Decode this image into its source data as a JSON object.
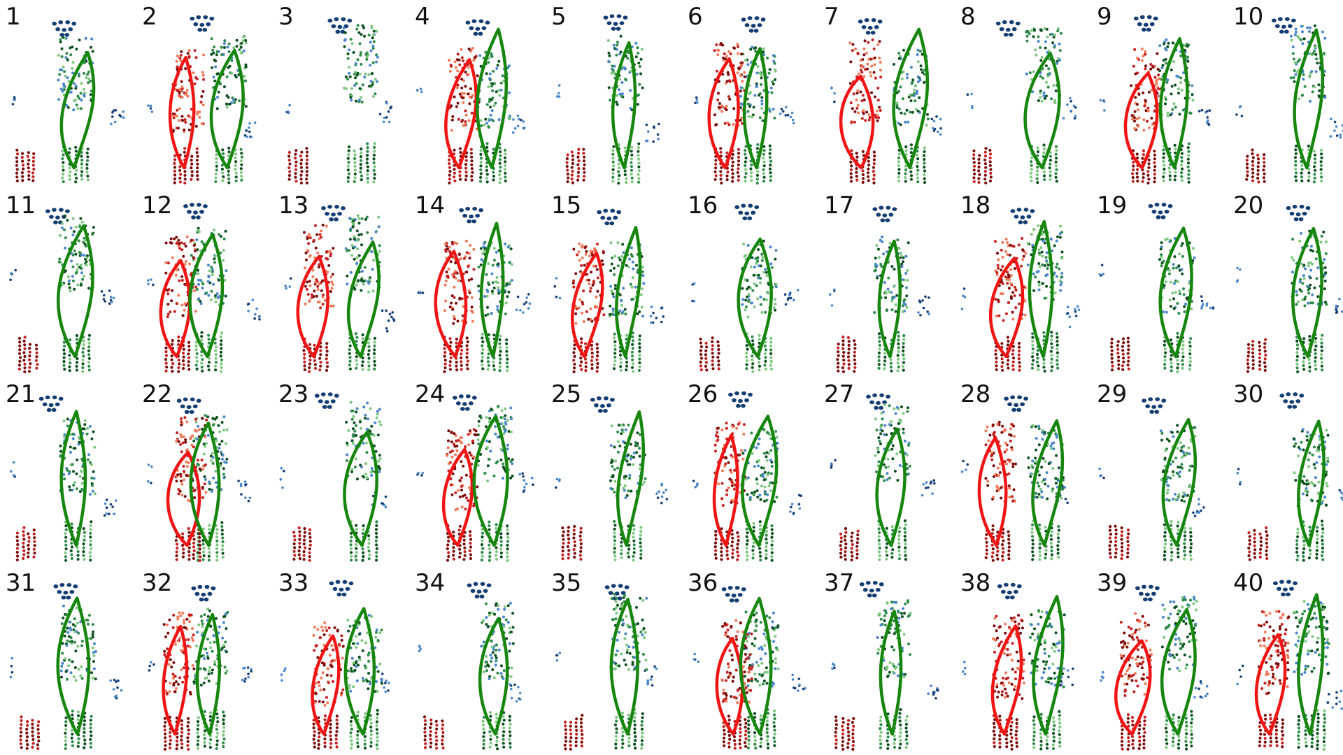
{
  "figure": {
    "panels": [
      {
        "label": "1",
        "trails": [
          "green"
        ]
      },
      {
        "label": "2",
        "trails": [
          "red",
          "green"
        ]
      },
      {
        "label": "3",
        "trails": []
      },
      {
        "label": "4",
        "trails": [
          "red",
          "green"
        ]
      },
      {
        "label": "5",
        "trails": [
          "green"
        ]
      },
      {
        "label": "6",
        "trails": [
          "red",
          "green"
        ]
      },
      {
        "label": "7",
        "trails": [
          "red",
          "green"
        ]
      },
      {
        "label": "8",
        "trails": [
          "green"
        ]
      },
      {
        "label": "9",
        "trails": [
          "red",
          "green"
        ]
      },
      {
        "label": "10",
        "trails": [
          "green"
        ]
      },
      {
        "label": "11",
        "trails": [
          "green"
        ]
      },
      {
        "label": "12",
        "trails": [
          "red",
          "green"
        ]
      },
      {
        "label": "13",
        "trails": [
          "red",
          "green"
        ]
      },
      {
        "label": "14",
        "trails": [
          "red",
          "green"
        ]
      },
      {
        "label": "15",
        "trails": [
          "red",
          "green"
        ]
      },
      {
        "label": "16",
        "trails": [
          "green"
        ]
      },
      {
        "label": "17",
        "trails": [
          "green"
        ]
      },
      {
        "label": "18",
        "trails": [
          "red",
          "green"
        ]
      },
      {
        "label": "19",
        "trails": [
          "green"
        ]
      },
      {
        "label": "20",
        "trails": [
          "green"
        ]
      },
      {
        "label": "21",
        "trails": [
          "green"
        ]
      },
      {
        "label": "22",
        "trails": [
          "red",
          "green"
        ]
      },
      {
        "label": "23",
        "trails": [
          "green"
        ]
      },
      {
        "label": "24",
        "trails": [
          "red",
          "green"
        ]
      },
      {
        "label": "25",
        "trails": [
          "green"
        ]
      },
      {
        "label": "26",
        "trails": [
          "red",
          "green"
        ]
      },
      {
        "label": "27",
        "trails": [
          "green"
        ]
      },
      {
        "label": "28",
        "trails": [
          "red",
          "green"
        ]
      },
      {
        "label": "29",
        "trails": [
          "green"
        ]
      },
      {
        "label": "30",
        "trails": [
          "green"
        ]
      },
      {
        "label": "31",
        "trails": [
          "green"
        ]
      },
      {
        "label": "32",
        "trails": [
          "red",
          "green"
        ]
      },
      {
        "label": "33",
        "trails": [
          "red",
          "green"
        ]
      },
      {
        "label": "34",
        "trails": [
          "green"
        ]
      },
      {
        "label": "35",
        "trails": [
          "green"
        ]
      },
      {
        "label": "36",
        "trails": [
          "red",
          "green"
        ]
      },
      {
        "label": "37",
        "trails": [
          "green"
        ]
      },
      {
        "label": "38",
        "trails": [
          "red",
          "green"
        ]
      },
      {
        "label": "39",
        "trails": [
          "red",
          "green"
        ]
      },
      {
        "label": "40",
        "trails": [
          "red",
          "green"
        ]
      }
    ],
    "colors": {
      "green_trail": "#17860f",
      "red_trail": "#f01515",
      "green_dots_dark": "#0d4f1f",
      "green_dots_mid": "#2e8a48",
      "green_dots_light": "#7ec77f",
      "red_dots_dark": "#7a0b0b",
      "red_dots_mid": "#c42020",
      "red_dots_light": "#f07a5a",
      "blue_dots_dark": "#143d73",
      "blue_dots_light": "#4a86c8"
    }
  }
}
